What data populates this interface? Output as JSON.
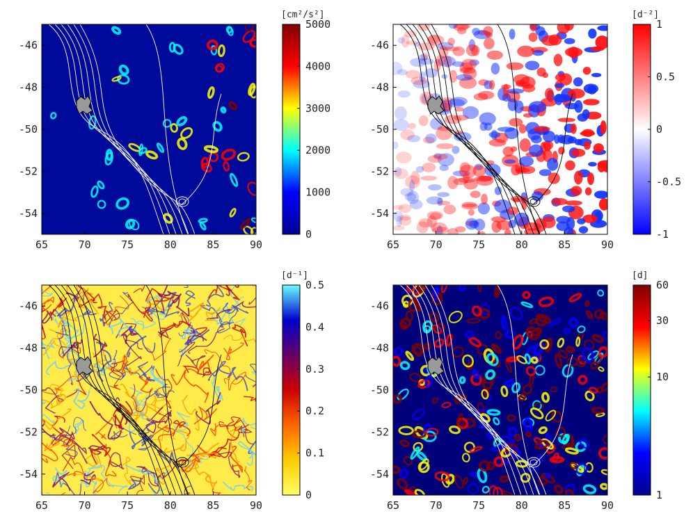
{
  "chart_data": [
    {
      "type": "heatmap",
      "title": "",
      "xlabel": "",
      "ylabel": "",
      "xlim": [
        65,
        90
      ],
      "ylim": [
        -55,
        -45
      ],
      "xticks": [
        65,
        70,
        75,
        80,
        85,
        90
      ],
      "yticks": [
        -46,
        -48,
        -50,
        -52,
        -54
      ],
      "colorbar": {
        "unit_text": "[cm²/s²]",
        "scale": "linear",
        "range": [
          0,
          5000
        ],
        "ticks": [
          0,
          1000,
          2000,
          3000,
          4000,
          5000
        ],
        "colormap": [
          "#00008f",
          "#0000ff",
          "#00ffff",
          "#ffff00",
          "#ff0000",
          "#800000"
        ]
      },
      "field": "eddy-blobs",
      "contour_color": "#ffffff"
    },
    {
      "type": "heatmap",
      "title": "",
      "xlabel": "",
      "ylabel": "",
      "xlim": [
        65,
        90
      ],
      "ylim": [
        -55,
        -45
      ],
      "xticks": [
        65,
        70,
        75,
        80,
        85,
        90
      ],
      "yticks": [
        -46,
        -48,
        -50,
        -52,
        -54
      ],
      "colorbar": {
        "unit_text": "[d⁻²]",
        "scale": "linear",
        "range": [
          -1,
          1
        ],
        "ticks": [
          -1,
          -0.5,
          0,
          0.5,
          1
        ],
        "colormap": [
          "#0000ff",
          "#ffffff",
          "#ff0000"
        ]
      },
      "field": "diverging-blobs",
      "contour_color": "#000000"
    },
    {
      "type": "heatmap",
      "title": "",
      "xlabel": "",
      "ylabel": "",
      "xlim": [
        65,
        90
      ],
      "ylim": [
        -55,
        -45
      ],
      "xticks": [
        65,
        70,
        75,
        80,
        85,
        90
      ],
      "yticks": [
        -46,
        -48,
        -50,
        -52,
        -54
      ],
      "colorbar": {
        "unit_text": "[d⁻¹]",
        "scale": "linear",
        "range": [
          0,
          0.5
        ],
        "ticks": [
          0,
          0.1,
          0.2,
          0.3,
          0.4,
          0.5
        ],
        "colormap": [
          "#ffff66",
          "#ffcc00",
          "#ff6600",
          "#cc0000",
          "#660066",
          "#0000cc",
          "#66ffff"
        ]
      },
      "field": "filaments",
      "contour_color": "#000000"
    },
    {
      "type": "heatmap",
      "title": "",
      "xlabel": "",
      "ylabel": "",
      "xlim": [
        65,
        90
      ],
      "ylim": [
        -55,
        -45
      ],
      "xticks": [
        65,
        70,
        75,
        80,
        85,
        90
      ],
      "yticks": [
        -46,
        -48,
        -50,
        -52,
        -54
      ],
      "colorbar": {
        "unit_text": "[d]",
        "scale": "log",
        "range": [
          1,
          60
        ],
        "ticks": [
          1,
          10,
          30,
          60
        ],
        "colormap": [
          "#00008f",
          "#0000ff",
          "#00ffff",
          "#ffff00",
          "#ff0000",
          "#800000"
        ]
      },
      "field": "eddy-blobs-dense",
      "contour_color": "#ffffff"
    }
  ]
}
